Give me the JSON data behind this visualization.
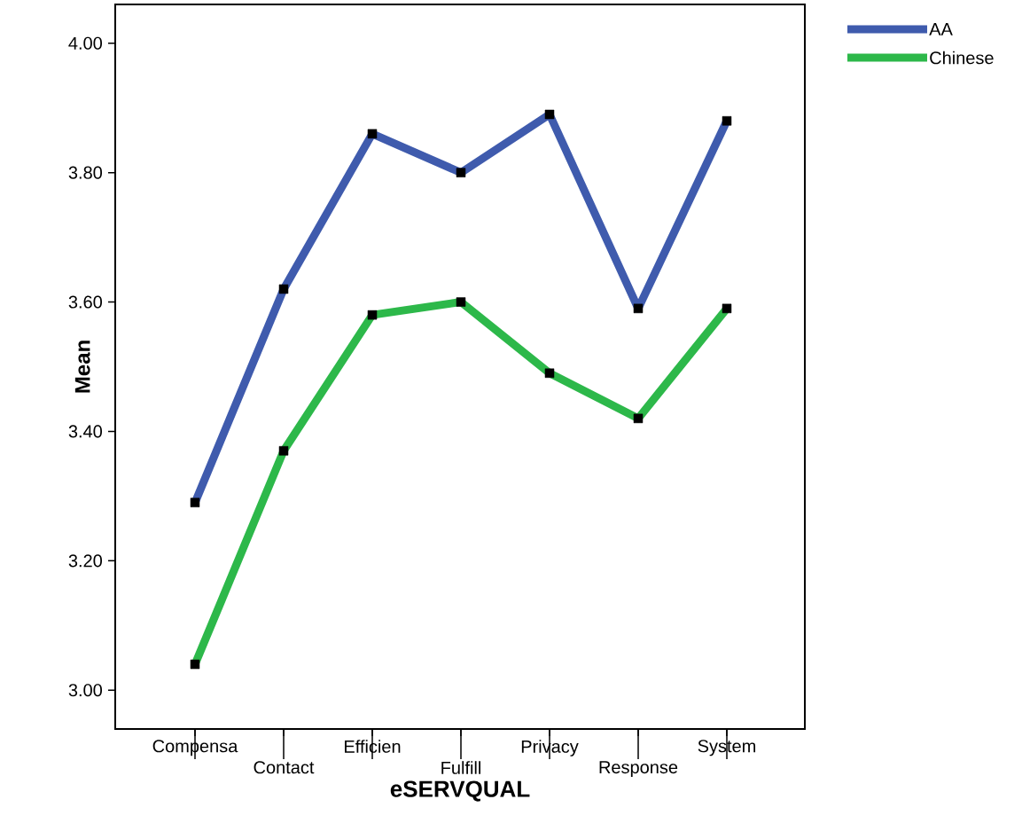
{
  "chart_data": {
    "type": "line",
    "xlabel": "eSERVQUAL",
    "ylabel": "Mean",
    "categories": [
      "Compensa",
      "Contact",
      "Efficien",
      "Fulfill",
      "Privacy",
      "Response",
      "System"
    ],
    "series": [
      {
        "name": "AA",
        "color": "#3f5bad",
        "values": [
          3.29,
          3.62,
          3.86,
          3.8,
          3.89,
          3.59,
          3.88
        ]
      },
      {
        "name": "Chinese",
        "color": "#2db84a",
        "values": [
          3.04,
          3.37,
          3.58,
          3.6,
          3.49,
          3.42,
          3.59
        ]
      }
    ],
    "ylim": [
      2.94,
      4.06
    ],
    "yticks": [
      {
        "value": 3.0,
        "label": "3.00"
      },
      {
        "value": 3.2,
        "label": "3.20"
      },
      {
        "value": 3.4,
        "label": "3.40"
      },
      {
        "value": 3.6,
        "label": "3.60"
      },
      {
        "value": 3.8,
        "label": "3.80"
      },
      {
        "value": 4.0,
        "label": "4.00"
      }
    ],
    "legend": "top right",
    "marker": "square",
    "line_style": "solid"
  }
}
